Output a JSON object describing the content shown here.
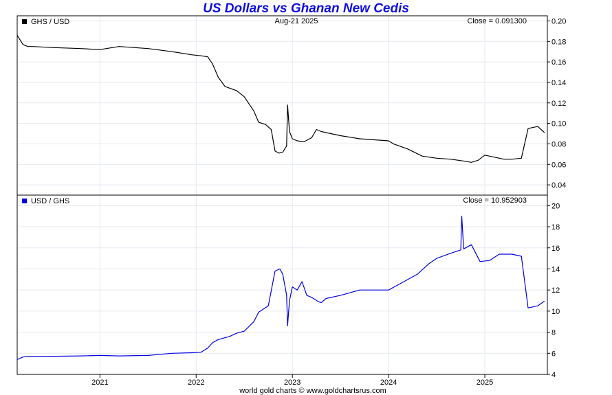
{
  "title": "US Dollars vs Ghanan New Cedis",
  "footer": "world gold charts © www.goldchartsrus.com",
  "chart_data": [
    {
      "type": "line",
      "legend": "GHS / USD",
      "date_label": "Aug-21  2025",
      "close_label": "Close = 0.091300",
      "color": "#000000",
      "legend_placement": "top-left",
      "grid": true,
      "ylim": [
        0.03,
        0.205
      ],
      "yticks": [
        0.04,
        0.06,
        0.08,
        0.1,
        0.12,
        0.14,
        0.16,
        0.18,
        0.2
      ],
      "ytick_labels": [
        "0.04",
        "0.06",
        "0.08",
        "0.10",
        "0.12",
        "0.14",
        "0.16",
        "0.18",
        "0.20"
      ],
      "x": [
        2020.14,
        2020.2,
        2020.25,
        2020.3,
        2020.5,
        2020.8,
        2021.0,
        2021.2,
        2021.5,
        2021.75,
        2021.95,
        2022.05,
        2022.12,
        2022.17,
        2022.23,
        2022.3,
        2022.42,
        2022.5,
        2022.6,
        2022.65,
        2022.72,
        2022.78,
        2022.82,
        2022.86,
        2022.9,
        2022.94,
        2022.95,
        2022.97,
        2023.0,
        2023.05,
        2023.12,
        2023.2,
        2023.25,
        2023.3,
        2023.35,
        2023.5,
        2023.7,
        2024.0,
        2024.05,
        2024.2,
        2024.35,
        2024.5,
        2024.65,
        2024.8,
        2024.86,
        2024.93,
        2025.0,
        2025.1,
        2025.2,
        2025.28,
        2025.38,
        2025.45,
        2025.55,
        2025.62
      ],
      "values": [
        0.186,
        0.177,
        0.175,
        0.175,
        0.174,
        0.173,
        0.172,
        0.175,
        0.173,
        0.17,
        0.167,
        0.166,
        0.165,
        0.158,
        0.145,
        0.136,
        0.132,
        0.126,
        0.112,
        0.101,
        0.099,
        0.094,
        0.073,
        0.071,
        0.072,
        0.078,
        0.118,
        0.092,
        0.085,
        0.083,
        0.082,
        0.086,
        0.094,
        0.092,
        0.091,
        0.088,
        0.085,
        0.083,
        0.08,
        0.075,
        0.068,
        0.066,
        0.065,
        0.063,
        0.062,
        0.064,
        0.069,
        0.067,
        0.065,
        0.065,
        0.066,
        0.095,
        0.097,
        0.091
      ]
    },
    {
      "type": "line",
      "legend": "USD / GHS",
      "close_label": "Close = 10.952903",
      "color": "#0000e0",
      "legend_placement": "top-left",
      "grid": true,
      "ylim": [
        4,
        21
      ],
      "yticks": [
        4,
        6,
        8,
        10,
        12,
        14,
        16,
        18,
        20
      ],
      "ytick_labels": [
        "4",
        "6",
        "8",
        "10",
        "12",
        "14",
        "16",
        "18",
        "20"
      ],
      "x": [
        2020.14,
        2020.2,
        2020.25,
        2020.4,
        2020.8,
        2021.0,
        2021.2,
        2021.5,
        2021.75,
        2021.95,
        2022.05,
        2022.12,
        2022.17,
        2022.23,
        2022.35,
        2022.42,
        2022.5,
        2022.6,
        2022.65,
        2022.7,
        2022.75,
        2022.82,
        2022.87,
        2022.9,
        2022.94,
        2022.95,
        2022.97,
        2023.0,
        2023.05,
        2023.1,
        2023.15,
        2023.2,
        2023.27,
        2023.3,
        2023.35,
        2023.5,
        2023.7,
        2024.0,
        2024.1,
        2024.3,
        2024.42,
        2024.5,
        2024.65,
        2024.75,
        2024.76,
        2024.78,
        2024.86,
        2024.95,
        2025.05,
        2025.15,
        2025.28,
        2025.38,
        2025.45,
        2025.55,
        2025.62
      ],
      "values": [
        5.4,
        5.65,
        5.7,
        5.7,
        5.75,
        5.8,
        5.75,
        5.8,
        6.0,
        6.05,
        6.1,
        6.5,
        7.0,
        7.3,
        7.6,
        7.9,
        8.1,
        9.0,
        9.9,
        10.2,
        10.5,
        13.8,
        14.0,
        13.5,
        11.5,
        8.6,
        11.0,
        12.3,
        12.0,
        12.8,
        11.5,
        11.3,
        10.9,
        10.8,
        11.2,
        11.5,
        12.0,
        12.0,
        12.5,
        13.5,
        14.5,
        15.0,
        15.5,
        15.8,
        19.0,
        15.9,
        16.3,
        14.7,
        14.8,
        15.4,
        15.4,
        15.2,
        10.3,
        10.5,
        10.95
      ]
    }
  ],
  "x_axis": {
    "xlim": [
      2020.14,
      2025.65
    ],
    "ticks": [
      2021,
      2022,
      2023,
      2024,
      2025
    ],
    "labels": [
      "2021",
      "2022",
      "2023",
      "2024",
      "2025"
    ]
  }
}
